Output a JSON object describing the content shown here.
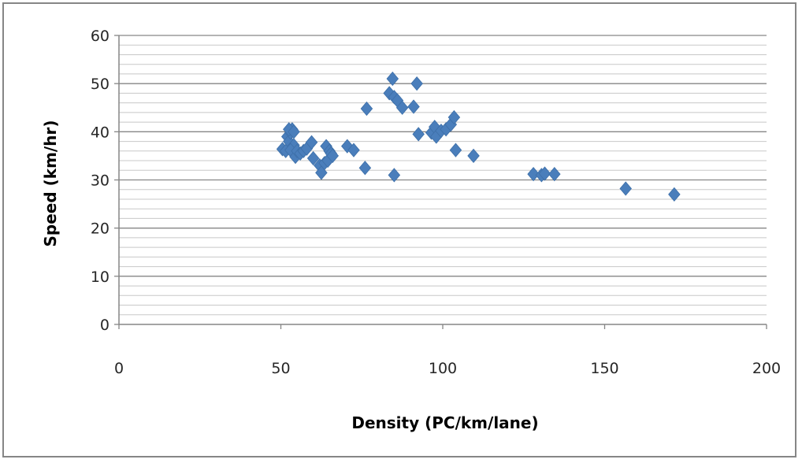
{
  "chart_data": {
    "type": "scatter",
    "title": "",
    "xlabel": "Density (PC/km/lane)",
    "ylabel": "Speed (km/hr)",
    "xlim": [
      0,
      200
    ],
    "ylim": [
      0,
      60
    ],
    "x_ticks": [
      "0",
      "50",
      "100",
      "150",
      "200"
    ],
    "y_ticks": [
      "0",
      "10",
      "20",
      "30",
      "40",
      "50",
      "60"
    ],
    "y_major_step": 10,
    "y_minor_step": 2,
    "grid": "horizontal major and minor gridlines",
    "legend": "none",
    "marker": "diamond",
    "colors": {
      "marker": "#4a7ebb",
      "major_grid": "#868686",
      "minor_grid": "#c8c8c8",
      "axis": "#868686"
    },
    "series": [
      {
        "points": [
          [
            50.5,
            36.4
          ],
          [
            51.5,
            36.0
          ],
          [
            52.0,
            39.0
          ],
          [
            52.5,
            38.0
          ],
          [
            53.0,
            39.8
          ],
          [
            53.5,
            40.5
          ],
          [
            54.0,
            37.2
          ],
          [
            53.0,
            36.2
          ],
          [
            54.5,
            34.8
          ],
          [
            55.0,
            36.0
          ],
          [
            52.5,
            40.5
          ],
          [
            54.0,
            40.0
          ],
          [
            56.0,
            35.5
          ],
          [
            57.0,
            36.0
          ],
          [
            58.0,
            36.5
          ],
          [
            59.5,
            37.8
          ],
          [
            60.0,
            34.5
          ],
          [
            62.0,
            33.0
          ],
          [
            62.5,
            31.5
          ],
          [
            63.5,
            33.5
          ],
          [
            64.0,
            37.0
          ],
          [
            64.5,
            34.0
          ],
          [
            65.0,
            36.0
          ],
          [
            65.5,
            35.5
          ],
          [
            66.0,
            35.0
          ],
          [
            70.5,
            37.0
          ],
          [
            72.5,
            36.2
          ],
          [
            76.0,
            32.5
          ],
          [
            76.5,
            44.8
          ],
          [
            83.5,
            48.0
          ],
          [
            84.5,
            51.0
          ],
          [
            85.0,
            47.2
          ],
          [
            85.0,
            31.0
          ],
          [
            86.0,
            46.5
          ],
          [
            87.5,
            45.0
          ],
          [
            91.0,
            45.2
          ],
          [
            92.0,
            50.0
          ],
          [
            92.5,
            39.5
          ],
          [
            96.5,
            39.8
          ],
          [
            97.5,
            41.0
          ],
          [
            98.0,
            39.0
          ],
          [
            99.5,
            40.2
          ],
          [
            101.0,
            40.5
          ],
          [
            102.5,
            41.5
          ],
          [
            103.5,
            43.0
          ],
          [
            104.0,
            36.2
          ],
          [
            109.5,
            35.0
          ],
          [
            128.0,
            31.2
          ],
          [
            130.5,
            31.0
          ],
          [
            131.5,
            31.3
          ],
          [
            134.5,
            31.2
          ],
          [
            156.5,
            28.2
          ],
          [
            171.5,
            27.0
          ]
        ]
      }
    ]
  }
}
